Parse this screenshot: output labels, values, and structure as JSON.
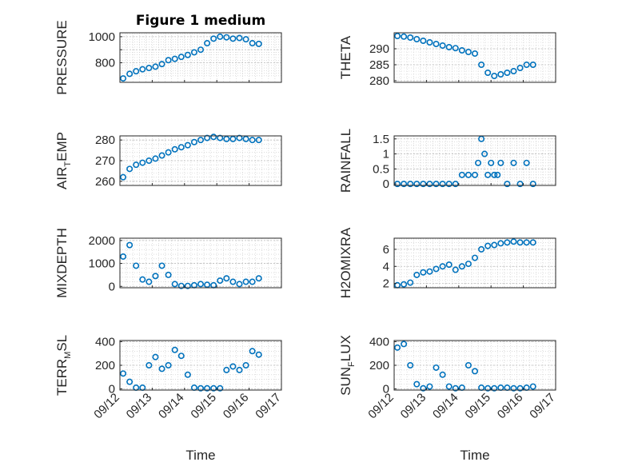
{
  "figure": {
    "title": "Figure 1 medium",
    "marker_color": "#0072BD",
    "grid": "minor dotted",
    "x_axis_label": "Time",
    "x_ticks": [
      "09/12",
      "09/13",
      "09/14",
      "09/15",
      "09/16",
      "09/17"
    ]
  },
  "chart_data": [
    {
      "type": "scatter",
      "ylabel_parts": [
        "PRESSURE"
      ],
      "xlim": [
        0,
        5
      ],
      "ylim": [
        650,
        1030
      ],
      "yticks": [
        800,
        900,
        1000
      ],
      "ytick_labels": [
        "800",
        "",
        "1000"
      ],
      "x": [
        0.1,
        0.3,
        0.5,
        0.7,
        0.9,
        1.1,
        1.3,
        1.5,
        1.7,
        1.9,
        2.1,
        2.3,
        2.5,
        2.7,
        2.9,
        3.1,
        3.3,
        3.5,
        3.7,
        3.9,
        4.1,
        4.3
      ],
      "y": [
        680,
        715,
        735,
        750,
        760,
        770,
        790,
        820,
        830,
        845,
        860,
        880,
        900,
        950,
        985,
        1000,
        995,
        985,
        990,
        980,
        950,
        945
      ]
    },
    {
      "type": "scatter",
      "ylabel_parts": [
        "THETA"
      ],
      "xlim": [
        0,
        5
      ],
      "ylim": [
        279.5,
        295
      ],
      "yticks": [
        280,
        285,
        290
      ],
      "ytick_labels": [
        "280",
        "285",
        "290"
      ],
      "x": [
        0.1,
        0.3,
        0.5,
        0.7,
        0.9,
        1.1,
        1.3,
        1.5,
        1.7,
        1.9,
        2.1,
        2.3,
        2.5,
        2.7,
        2.9,
        3.1,
        3.3,
        3.5,
        3.7,
        3.9,
        4.1,
        4.3
      ],
      "y": [
        294,
        293.8,
        293.5,
        293,
        292.5,
        292,
        291.5,
        291,
        290.5,
        290.2,
        289.5,
        289,
        288.5,
        285,
        282.5,
        281.5,
        282,
        282.5,
        283,
        284,
        285,
        285
      ]
    },
    {
      "type": "scatter",
      "ylabel_parts": [
        "AIR",
        "T",
        "EMP"
      ],
      "xlim": [
        0,
        5
      ],
      "ylim": [
        258,
        282
      ],
      "yticks": [
        260,
        270,
        280
      ],
      "ytick_labels": [
        "260",
        "270",
        "280"
      ],
      "x": [
        0.1,
        0.3,
        0.5,
        0.7,
        0.9,
        1.1,
        1.3,
        1.5,
        1.7,
        1.9,
        2.1,
        2.3,
        2.5,
        2.7,
        2.9,
        3.1,
        3.3,
        3.5,
        3.7,
        3.9,
        4.1,
        4.3
      ],
      "y": [
        262,
        266,
        268,
        269,
        270,
        271,
        272.5,
        274,
        275.5,
        276.5,
        277.5,
        279,
        280,
        281,
        281.5,
        281,
        280.5,
        280.5,
        281,
        280.5,
        280,
        280
      ]
    },
    {
      "type": "scatter",
      "ylabel_parts": [
        "RAINFALL"
      ],
      "xlim": [
        0,
        5
      ],
      "ylim": [
        -0.05,
        1.6
      ],
      "yticks": [
        0,
        0.5,
        1,
        1.5
      ],
      "ytick_labels": [
        "0",
        "0.5",
        "1",
        "1.5"
      ],
      "x": [
        0.1,
        0.3,
        0.5,
        0.7,
        0.9,
        1.1,
        1.3,
        1.5,
        1.7,
        1.9,
        2.1,
        2.3,
        2.5,
        2.6,
        2.7,
        2.8,
        2.9,
        3.0,
        3.1,
        3.2,
        3.3,
        3.5,
        3.7,
        3.9,
        4.1,
        4.3
      ],
      "y": [
        0,
        0,
        0,
        0,
        0,
        0,
        0,
        0,
        0,
        0,
        0.3,
        0.3,
        0.3,
        0.7,
        1.5,
        1.0,
        0.3,
        0.7,
        0.3,
        0.3,
        0.7,
        0,
        0.7,
        0,
        0.7,
        0
      ]
    },
    {
      "type": "scatter",
      "ylabel_parts": [
        "MIXDEPTH"
      ],
      "xlim": [
        0,
        5
      ],
      "ylim": [
        -60,
        2100
      ],
      "yticks": [
        0,
        1000,
        2000
      ],
      "ytick_labels": [
        "0",
        "1000",
        "2000"
      ],
      "x": [
        0.1,
        0.3,
        0.5,
        0.7,
        0.9,
        1.1,
        1.3,
        1.5,
        1.7,
        1.9,
        2.1,
        2.3,
        2.5,
        2.7,
        2.9,
        3.1,
        3.3,
        3.5,
        3.7,
        3.9,
        4.1,
        4.3
      ],
      "y": [
        1300,
        1800,
        900,
        300,
        200,
        450,
        900,
        500,
        100,
        20,
        20,
        50,
        100,
        70,
        50,
        250,
        350,
        200,
        100,
        200,
        200,
        350
      ]
    },
    {
      "type": "scatter",
      "ylabel_parts": [
        "H2OMIXRA"
      ],
      "xlim": [
        0,
        5
      ],
      "ylim": [
        1.5,
        7.3
      ],
      "yticks": [
        2,
        4,
        6
      ],
      "ytick_labels": [
        "2",
        "4",
        "6"
      ],
      "x": [
        0.1,
        0.3,
        0.5,
        0.7,
        0.9,
        1.1,
        1.3,
        1.5,
        1.7,
        1.9,
        2.1,
        2.3,
        2.5,
        2.7,
        2.9,
        3.1,
        3.3,
        3.5,
        3.7,
        3.9,
        4.1,
        4.3
      ],
      "y": [
        1.8,
        1.9,
        2.1,
        3.0,
        3.3,
        3.4,
        3.7,
        4.0,
        4.2,
        3.6,
        4.0,
        4.3,
        5.0,
        6.0,
        6.4,
        6.5,
        6.7,
        6.8,
        6.9,
        6.8,
        6.8,
        6.8
      ]
    },
    {
      "type": "scatter",
      "ylabel_parts": [
        "TERR",
        "M",
        "SL"
      ],
      "xlim": [
        0,
        5
      ],
      "ylim": [
        -10,
        410
      ],
      "yticks": [
        0,
        200,
        400
      ],
      "ytick_labels": [
        "0",
        "200",
        "400"
      ],
      "x": [
        0.1,
        0.3,
        0.5,
        0.7,
        0.9,
        1.1,
        1.3,
        1.5,
        1.7,
        1.9,
        2.1,
        2.3,
        2.5,
        2.7,
        2.9,
        3.1,
        3.3,
        3.5,
        3.7,
        3.9,
        4.1,
        4.3
      ],
      "y": [
        130,
        60,
        10,
        10,
        200,
        270,
        170,
        200,
        330,
        280,
        120,
        10,
        5,
        5,
        5,
        5,
        160,
        190,
        160,
        200,
        320,
        290
      ]
    },
    {
      "type": "scatter",
      "ylabel_parts": [
        "SUN",
        "F",
        "LUX"
      ],
      "xlim": [
        0,
        5
      ],
      "ylim": [
        -10,
        410
      ],
      "yticks": [
        0,
        200,
        400
      ],
      "ytick_labels": [
        "0",
        "200",
        "400"
      ],
      "x": [
        0.1,
        0.3,
        0.5,
        0.7,
        0.9,
        1.1,
        1.3,
        1.5,
        1.7,
        1.9,
        2.1,
        2.3,
        2.5,
        2.7,
        2.9,
        3.1,
        3.3,
        3.5,
        3.7,
        3.9,
        4.1,
        4.3
      ],
      "y": [
        350,
        380,
        200,
        40,
        5,
        20,
        180,
        120,
        20,
        5,
        10,
        200,
        150,
        10,
        5,
        5,
        10,
        10,
        5,
        5,
        10,
        20
      ]
    }
  ]
}
